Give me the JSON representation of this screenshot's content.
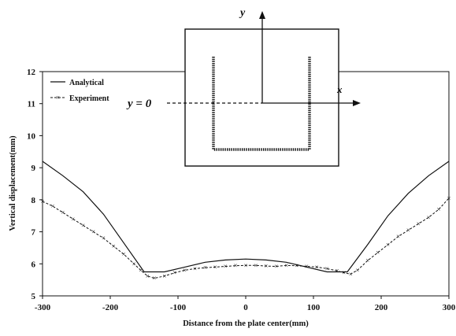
{
  "chart_data": {
    "type": "line",
    "xlabel": "Distance from the plate center(mm)",
    "ylabel": "Vertical displacement(mm)",
    "xlim": [
      -300,
      300
    ],
    "ylim": [
      5,
      12
    ],
    "xticks": [
      -300,
      -200,
      -100,
      0,
      100,
      200,
      300
    ],
    "yticks": [
      5,
      6,
      7,
      8,
      9,
      10,
      11,
      12
    ],
    "grid": false,
    "legend_position": "top-left",
    "series": [
      {
        "name": "Analytical",
        "style": "solid",
        "color": "#111111",
        "x": [
          -300,
          -270,
          -240,
          -210,
          -180,
          -150,
          -120,
          -90,
          -60,
          -30,
          0,
          30,
          60,
          90,
          120,
          150,
          180,
          210,
          240,
          270,
          300
        ],
        "y": [
          9.2,
          8.75,
          8.25,
          7.55,
          6.65,
          5.75,
          5.75,
          5.9,
          6.05,
          6.12,
          6.15,
          6.12,
          6.05,
          5.9,
          5.75,
          5.75,
          6.6,
          7.5,
          8.2,
          8.75,
          9.2
        ]
      },
      {
        "name": "Experiment",
        "style": "dashed-x",
        "color": "#111111",
        "x": [
          -300,
          -285,
          -270,
          -255,
          -240,
          -225,
          -210,
          -195,
          -180,
          -165,
          -155,
          -145,
          -135,
          -120,
          -105,
          -90,
          -75,
          -60,
          -45,
          -30,
          -15,
          0,
          15,
          30,
          45,
          60,
          75,
          90,
          105,
          120,
          135,
          145,
          155,
          165,
          180,
          195,
          210,
          225,
          240,
          255,
          270,
          285,
          300
        ],
        "y": [
          7.95,
          7.8,
          7.6,
          7.4,
          7.2,
          7.0,
          6.8,
          6.55,
          6.3,
          6.0,
          5.8,
          5.62,
          5.55,
          5.62,
          5.72,
          5.8,
          5.85,
          5.88,
          5.9,
          5.92,
          5.94,
          5.95,
          5.95,
          5.93,
          5.92,
          5.95,
          5.94,
          5.92,
          5.9,
          5.85,
          5.78,
          5.72,
          5.68,
          5.8,
          6.1,
          6.35,
          6.6,
          6.85,
          7.05,
          7.25,
          7.45,
          7.7,
          8.05
        ]
      }
    ]
  },
  "inset": {
    "y_axis_label": "y",
    "x_axis_label": "x",
    "section_label": "y = 0"
  }
}
